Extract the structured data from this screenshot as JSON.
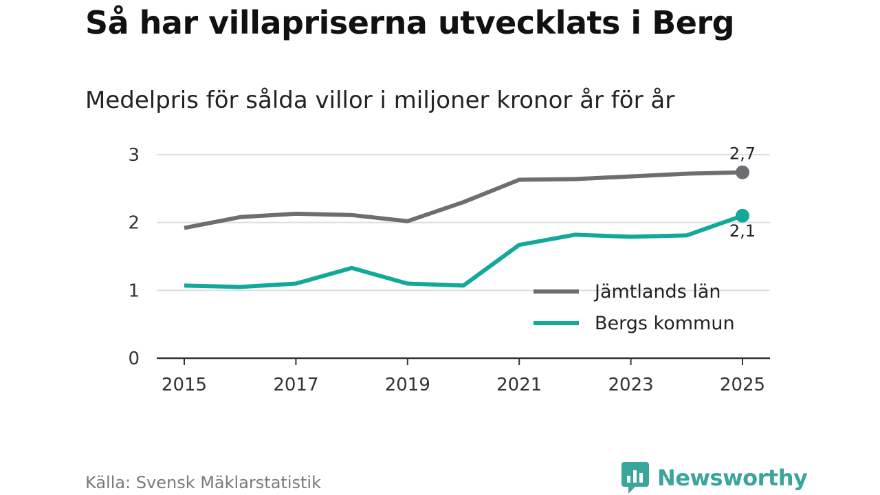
{
  "header": {
    "title": "Så har villapriserna utvecklats i Berg",
    "subtitle": "Medelpris för sålda villor i miljoner kronor år för år"
  },
  "footer": {
    "source": "Källa: Svensk Mäklarstatistik",
    "brand": "Newsworthy",
    "brand_icon": "chart-speech-bubble-icon"
  },
  "colors": {
    "series_jamtland": "#6d6d72",
    "series_berg": "#12a89c",
    "grid": "#dddddd",
    "axis": "#333333",
    "brand": "#3aa59a"
  },
  "chart_data": {
    "type": "line",
    "title": "Så har villapriserna utvecklats i Berg",
    "subtitle": "Medelpris för sålda villor i miljoner kronor år för år",
    "xlabel": "",
    "ylabel": "",
    "x": [
      2015,
      2016,
      2017,
      2018,
      2019,
      2020,
      2021,
      2022,
      2023,
      2024,
      2025
    ],
    "xticks": [
      2015,
      2017,
      2019,
      2021,
      2023,
      2025
    ],
    "xtick_labels": [
      "2015",
      "2017",
      "2019",
      "2021",
      "2023",
      "2025"
    ],
    "yticks": [
      0,
      1,
      2,
      3
    ],
    "ytick_labels": [
      "0",
      "1",
      "2",
      "3"
    ],
    "ylim": [
      0,
      3
    ],
    "grid": true,
    "legend_position": "bottom-right",
    "series": [
      {
        "name": "Jämtlands län",
        "values": [
          1.92,
          2.08,
          2.13,
          2.11,
          2.02,
          2.3,
          2.63,
          2.64,
          2.68,
          2.72,
          2.74
        ],
        "end_label": "2,7"
      },
      {
        "name": "Bergs kommun",
        "values": [
          1.07,
          1.05,
          1.1,
          1.33,
          1.1,
          1.07,
          1.67,
          1.82,
          1.79,
          1.81,
          2.1
        ],
        "end_label": "2,1"
      }
    ]
  }
}
